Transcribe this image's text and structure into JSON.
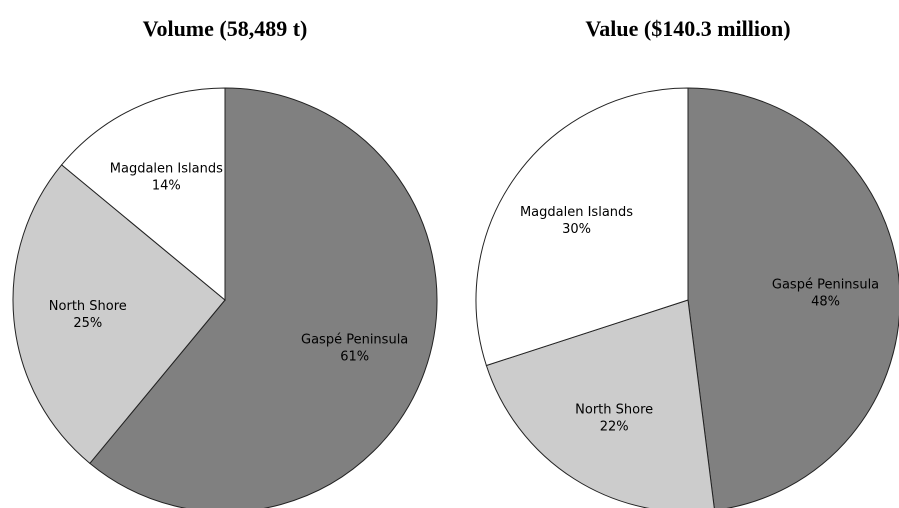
{
  "chart_data": [
    {
      "type": "pie",
      "title": "Volume (58,489 t)",
      "categories": [
        "Gaspé Peninsula",
        "North Shore",
        "Magdalen Islands"
      ],
      "values": [
        61,
        25,
        14
      ],
      "value_labels": [
        "61%",
        "25%",
        "14%"
      ],
      "colors": [
        "#808080",
        "#cccccc",
        "#ffffff"
      ]
    },
    {
      "type": "pie",
      "title": "Value ($140.3 million)",
      "categories": [
        "Gaspé Peninsula",
        "North Shore",
        "Magdalen Islands"
      ],
      "values": [
        48,
        22,
        30
      ],
      "value_labels": [
        "48%",
        "22%",
        "30%"
      ],
      "colors": [
        "#808080",
        "#cccccc",
        "#ffffff"
      ]
    }
  ]
}
